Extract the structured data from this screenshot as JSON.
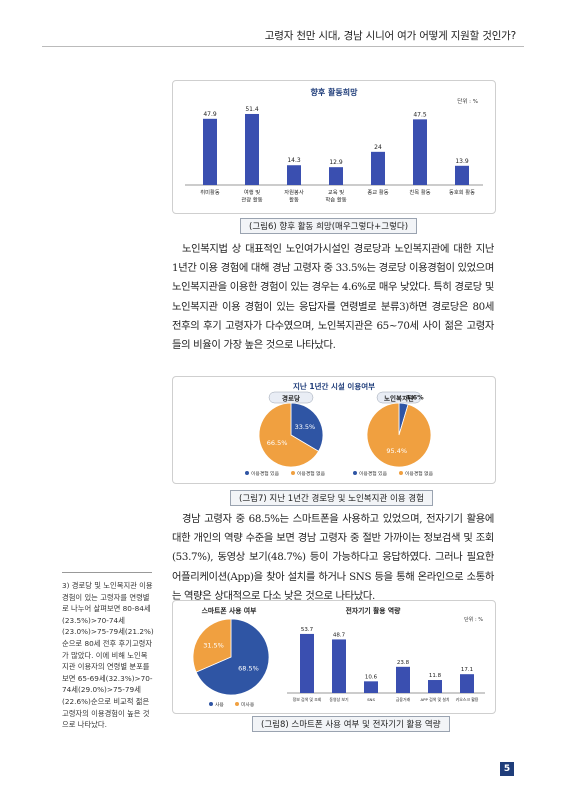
{
  "header": {
    "title": "고령자 천만 시대, 경남 시니어 여가 어떻게 지원할 것인가?"
  },
  "figure6": {
    "caption": "(그림6) 향후 활동 희망(매우그렇다+그렇다)",
    "chart_data": {
      "type": "bar",
      "title": "향후 활동희망",
      "unit": "단위 : %",
      "categories": [
        "취미활동",
        "여행 및 관광 활동",
        "자원봉사 활동",
        "교육 및 학습 활동",
        "종교 활동",
        "친목 활동",
        "동호회 활동"
      ],
      "category_lines": [
        [
          "취미활동"
        ],
        [
          "여행 및",
          "관광 활동"
        ],
        [
          "자원봉사",
          "활동"
        ],
        [
          "교육 및",
          "학습 활동"
        ],
        [
          "종교 활동"
        ],
        [
          "친목 활동"
        ],
        [
          "동호회 활동"
        ]
      ],
      "values": [
        47.9,
        51.4,
        14.3,
        12.9,
        24,
        47.5,
        13.9
      ],
      "ylim": [
        0,
        55
      ],
      "color": "#3a4fb0"
    }
  },
  "paragraph1": "노인복지법 상 대표적인 노인여가시설인 경로당과 노인복지관에 대한 지난 1년간 이용 경험에 대해 경남 고령자 중 33.5%는 경로당 이용경험이 있었으며 노인복지관을 이용한 경험이 있는 경우는 4.6%로 매우 낮았다. 특히 경로당 및 노인복지관 이용 경험이 있는 응답자를 연령별로 분류3)하면 경로당은 80세 전후의 후기 고령자가 다수였으며, 노인복지관은 65~70세 사이 젊은 고령자들의 비율이 가장 높은 것으로 나타났다.",
  "figure7": {
    "caption": "(그림7) 지난 1년간 경로당 및 노인복지관 이용 경험",
    "chart_data": {
      "type": "pie",
      "title": "지난 1년간 시설 이용여부",
      "charts": [
        {
          "name": "경로당",
          "slices": [
            {
              "label": "이용경험 있음",
              "value": 33.5,
              "display": "33.5%",
              "color": "#2f55a4"
            },
            {
              "label": "이용경험 없음",
              "value": 66.5,
              "display": "66.5%",
              "color": "#f0a040"
            }
          ]
        },
        {
          "name": "노인복지관",
          "slices": [
            {
              "label": "이용경험 있음",
              "value": 4.6,
              "display": "4.6%",
              "color": "#2f55a4"
            },
            {
              "label": "이용경험 없음",
              "value": 95.4,
              "display": "95.4%",
              "color": "#f0a040"
            }
          ]
        }
      ],
      "legend": [
        "이용경험 있음",
        "이용경험 없음"
      ]
    }
  },
  "paragraph2": "경남 고령자 중 68.5%는 스마트폰을 사용하고 있었으며, 전자기기 활용에 대한 개인의 역량 수준을 보면 경남 고령자 중 절반 가까이는 정보검색 및 조회(53.7%), 동영상 보기(48.7%) 등이 가능하다고 응답하였다. 그러나 필요한 어플리케이션(App)을 찾아 설치를 하거나 SNS 등을 통해 온라인으로 소통하는 역량은 상대적으로 다소 낮은 것으로 나타났다.",
  "figure8": {
    "caption": "(그림8) 스마트폰 사용 여부 및 전자기기 활용 역량",
    "chart_data": [
      {
        "type": "pie",
        "title": "스마트폰 사용 여부",
        "slices": [
          {
            "label": "사용",
            "value": 68.5,
            "display": "68.5%",
            "color": "#2f55a4"
          },
          {
            "label": "미사용",
            "value": 31.5,
            "display": "31.5%",
            "color": "#f0a040"
          }
        ],
        "legend": [
          "사용",
          "미사용"
        ]
      },
      {
        "type": "bar",
        "title": "전자기기 활용 역량",
        "unit": "단위 : %",
        "categories": [
          "정보 검색 및 조회",
          "동영상 보기",
          "SNS",
          "금융거래",
          "APP 검색 및 설치",
          "키오스크 활용"
        ],
        "values": [
          53.7,
          48.7,
          10.6,
          23.8,
          11.8,
          17.1
        ],
        "ylim": [
          0,
          60
        ],
        "color": "#3a4fb0"
      }
    ]
  },
  "footnote": "3) 경로당 및 노인복지관 이용 경험이 있는 고령자를 연령별로 나누어 살펴보면 80-84세(23.5%)>70-74세(23.0%)>75-79세(21.2%)순으로 80세 전후 후기고령자가 많았다. 이에 비해 노인복지관 이용자의 연령별 분포를 보면 65-69세(32.3%)>70-74세(29.0%)>75-79세(22.6%)순으로 비교적 젊은 고령자의 이용경험이 높은 것으로 나타났다.",
  "page_number": "5"
}
